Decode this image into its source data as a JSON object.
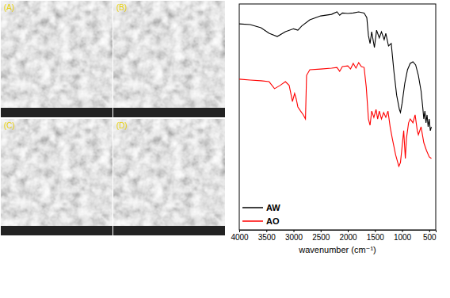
{
  "figure": {
    "panels": [
      "(A)",
      "(B)",
      "(C)",
      "(D)"
    ]
  },
  "chart_data": {
    "type": "line",
    "x_label": "wavenumber (cm⁻¹)",
    "xlim": [
      4000,
      380
    ],
    "xticks": [
      4000,
      3500,
      3000,
      2500,
      2000,
      1500,
      1000,
      500
    ],
    "ylim": [
      0,
      100
    ],
    "tick_labels": "x",
    "legend": "lower left",
    "grid": false,
    "series": [
      {
        "name": "AW",
        "color": "#000000",
        "x": [
          4000,
          3800,
          3600,
          3450,
          3300,
          3150,
          3000,
          2920,
          2850,
          2700,
          2500,
          2300,
          2200,
          2150,
          2100,
          2000,
          1900,
          1800,
          1700,
          1650,
          1620,
          1590,
          1560,
          1510,
          1470,
          1420,
          1380,
          1330,
          1300,
          1250,
          1200,
          1150,
          1100,
          1050,
          1030,
          1000,
          950,
          900,
          850,
          800,
          750,
          700,
          650,
          620,
          600,
          580,
          560,
          540,
          520,
          500,
          480,
          460
        ],
        "values": [
          91.2,
          90.9,
          89.5,
          87,
          85.6,
          87.7,
          89,
          88.4,
          90.2,
          93,
          94.7,
          95.4,
          96.5,
          95,
          96,
          95.8,
          96,
          96.5,
          96,
          94,
          86,
          82.5,
          87.7,
          80.7,
          88.4,
          85,
          87.7,
          84.2,
          87,
          81.4,
          82.5,
          70,
          59.6,
          53.3,
          52,
          56,
          64.9,
          70.9,
          73.7,
          74.4,
          73,
          68.4,
          61.4,
          54.4,
          49.1,
          52.6,
          47.4,
          50.9,
          45.6,
          49.1,
          43.9,
          45.6
        ]
      },
      {
        "name": "AO",
        "color": "#ff0000",
        "x": [
          4000,
          3800,
          3600,
          3450,
          3350,
          3250,
          3150,
          3080,
          3020,
          2980,
          2950,
          2920,
          2870,
          2820,
          2780,
          2760,
          2700,
          2500,
          2300,
          2200,
          2150,
          2100,
          2000,
          1950,
          1900,
          1850,
          1800,
          1750,
          1700,
          1660,
          1620,
          1590,
          1560,
          1520,
          1480,
          1450,
          1420,
          1380,
          1340,
          1300,
          1260,
          1220,
          1180,
          1120,
          1060,
          1030,
          1000,
          970,
          940,
          920,
          880,
          850,
          800,
          760,
          720,
          700,
          650,
          600,
          550,
          500,
          460
        ],
        "values": [
          66.7,
          66.3,
          66,
          65.6,
          62.5,
          63.9,
          65.6,
          63.9,
          56.8,
          60.4,
          57.9,
          54.4,
          52.6,
          50.9,
          49.1,
          68.4,
          70.9,
          71.2,
          71.6,
          71.9,
          70.2,
          72.3,
          72.6,
          71.2,
          73.7,
          71.6,
          74,
          72.3,
          71.9,
          63.2,
          49.1,
          46.3,
          52.6,
          49.8,
          53.3,
          49.1,
          52.6,
          49.1,
          51.9,
          49.8,
          52.6,
          45.6,
          40.4,
          33.3,
          28.1,
          29.8,
          36.8,
          43.9,
          31.6,
          40.4,
          47.4,
          49.1,
          47.4,
          50.9,
          43.9,
          42.1,
          45.6,
          38.6,
          35.1,
          32.3,
          31.6
        ]
      }
    ]
  }
}
